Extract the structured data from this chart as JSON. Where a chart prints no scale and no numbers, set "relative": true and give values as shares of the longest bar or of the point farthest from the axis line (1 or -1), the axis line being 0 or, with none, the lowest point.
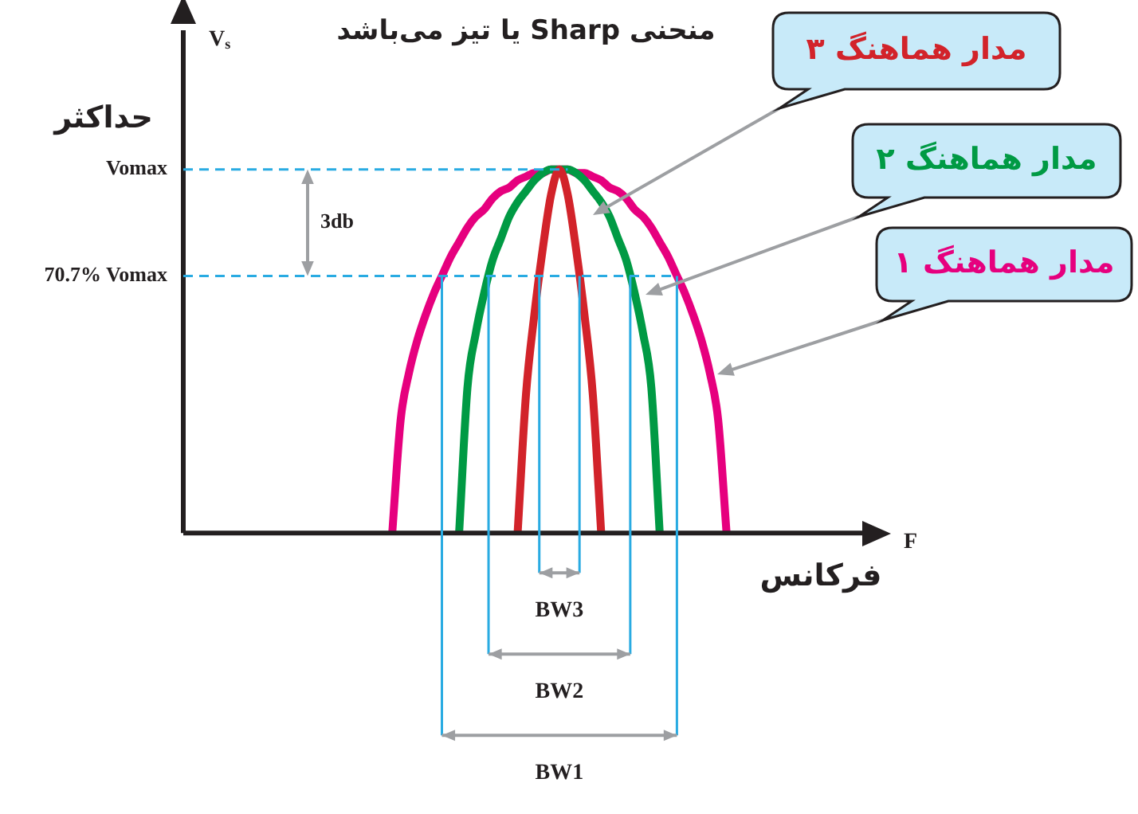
{
  "chart_data": {
    "type": "line",
    "title": "منحنی Sharp یا تیز می‌باشد",
    "xlabel": "F",
    "annotations": [
      "حداکثر",
      "3db",
      "فرکانس",
      "BW1",
      "BW2",
      "BW3",
      "V$_{s}$"
    ],
    "categories": [
      null,
      null,
      null,
      null,
      null,
      null,
      null,
      null,
      null,
      null,
      null,
      null,
      null,
      null,
      null,
      null,
      null,
      null,
      null,
      null,
      null,
      null,
      null,
      null,
      null,
      null,
      null,
      null,
      null,
      null,
      null,
      null,
      null,
      null,
      null,
      null,
      null,
      null,
      null,
      null,
      null,
      null,
      null,
      null,
      null,
      null,
      null,
      null,
      null,
      null,
      null,
      null,
      null,
      null,
      null,
      null,
      null,
      null,
      null,
      null,
      null,
      null,
      null,
      null,
      null,
      null,
      null,
      null,
      null,
      null,
      null,
      null,
      null,
      null,
      null,
      null,
      null,
      null,
      null,
      null,
      null,
      null,
      null
    ],
    "series": [
      {
        "name": "مدار هماهنگ ۱",
        "color": "#e6007e",
        "values": [
          null,
          null,
          null,
          null,
          null,
          null,
          null,
          null,
          null,
          null,
          null,
          null,
          null,
          null,
          null,
          null,
          null,
          null,
          null,
          null,
          null,
          null,
          null,
          null,
          null,
          0,
          0.31,
          0.44,
          0.53,
          0.6,
          0.66,
          0.71,
          0.76,
          0.8,
          0.84,
          0.87,
          0.89,
          0.92,
          0.94,
          0.95,
          0.97,
          0.98,
          0.99,
          0.99,
          1,
          1,
          1,
          0.99,
          0.99,
          0.98,
          0.97,
          0.95,
          0.94,
          0.92,
          0.89,
          0.87,
          0.84,
          0.8,
          0.76,
          0.71,
          0.66,
          0.6,
          0.53,
          0.44,
          0.31,
          0,
          null,
          null,
          null,
          null,
          null,
          null,
          null,
          null,
          null,
          null,
          null,
          null,
          null,
          null,
          null,
          null,
          null
        ]
      },
      {
        "name": "مدار هماهنگ ۲",
        "color": "#009a44",
        "values": [
          null,
          null,
          null,
          null,
          null,
          null,
          null,
          null,
          null,
          null,
          null,
          null,
          null,
          null,
          null,
          null,
          null,
          null,
          null,
          null,
          null,
          null,
          null,
          null,
          null,
          null,
          null,
          null,
          null,
          null,
          null,
          null,
          null,
          0,
          0.4,
          0.55,
          0.66,
          0.75,
          0.81,
          0.87,
          0.91,
          0.94,
          0.97,
          0.99,
          1,
          1,
          1,
          0.99,
          0.97,
          0.94,
          0.91,
          0.87,
          0.81,
          0.75,
          0.66,
          0.55,
          0.4,
          0,
          null,
          null,
          null,
          null,
          null,
          null,
          null,
          null,
          null,
          null,
          null,
          null,
          null,
          null,
          null,
          null,
          null,
          null,
          null,
          null,
          null,
          null,
          null,
          null,
          null
        ]
      },
      {
        "name": "مدار هماهنگ ۳",
        "color": "#d2232a",
        "values": [
          null,
          null,
          null,
          null,
          null,
          null,
          null,
          null,
          null,
          null,
          null,
          null,
          null,
          null,
          null,
          null,
          null,
          null,
          null,
          null,
          null,
          null,
          null,
          null,
          null,
          null,
          null,
          null,
          null,
          null,
          null,
          null,
          null,
          null,
          null,
          null,
          null,
          null,
          null,
          null,
          0,
          0.38,
          0.6,
          0.78,
          0.93,
          1,
          0.93,
          0.78,
          0.6,
          0.38,
          0,
          null,
          null,
          null,
          null,
          null,
          null,
          null,
          null,
          null,
          null,
          null,
          null,
          null,
          null,
          null,
          null,
          null,
          null,
          null,
          null,
          null,
          null,
          null,
          null,
          null,
          null,
          null,
          null,
          null,
          null,
          null,
          null
        ]
      }
    ],
    "relative": true,
    "ref_lines": [
      {
        "axis": "y",
        "value": 0.707,
        "label": "70.7% Vomax",
        "color": "#29abe2",
        "line_style": "dashed"
      },
      {
        "axis": "y",
        "value": 1,
        "label": "Vomax",
        "color": "#29abe2",
        "line_style": "dashed"
      }
    ],
    "grid": false,
    "legend": false,
    "marker": "none",
    "line_style": "solid"
  }
}
